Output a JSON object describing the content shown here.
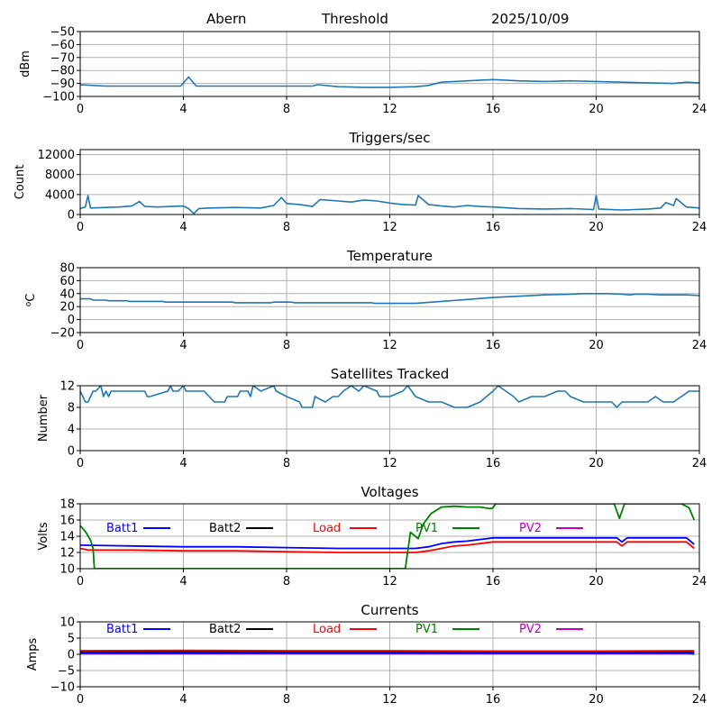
{
  "header": {
    "station": "Abern",
    "mode": "Threshold",
    "date": "2025/10/09"
  },
  "colors": {
    "series_default": "#1f77b4",
    "Batt1": "#0000ff",
    "Batt2": "#000000",
    "Load": "#ff0000",
    "PV1": "#008000",
    "PV2": "#bf00bf",
    "grid": "#b0b0b0"
  },
  "chart_data": [
    {
      "type": "line",
      "title": "",
      "ylabel": "dBm",
      "xlabel": "",
      "xlim": [
        0,
        24
      ],
      "ylim": [
        -100,
        -50
      ],
      "xticks": [
        "0",
        "4",
        "8",
        "12",
        "16",
        "20",
        "24"
      ],
      "yticks": [
        "−50",
        "−60",
        "−70",
        "−80",
        "−90",
        "−100"
      ],
      "ytick_values": [
        -50,
        -60,
        -70,
        -80,
        -90,
        -100
      ],
      "grid": true,
      "series": [
        {
          "name": "Threshold",
          "color_key": "series_default",
          "x": [
            0,
            0.5,
            1,
            2,
            3,
            3.9,
            4.2,
            4.5,
            5,
            6,
            7,
            8,
            9,
            9.2,
            10,
            11,
            12,
            13,
            13.5,
            14,
            15,
            16,
            17,
            18,
            19,
            20,
            21,
            22,
            23,
            23.5,
            24
          ],
          "y": [
            -91,
            -91.5,
            -92,
            -92,
            -92,
            -92,
            -85,
            -92,
            -92,
            -92,
            -92,
            -92,
            -92,
            -91,
            -92.5,
            -93,
            -93,
            -92.5,
            -91.5,
            -89,
            -88,
            -87,
            -88,
            -88.5,
            -88,
            -88.5,
            -89,
            -89.5,
            -90,
            -89,
            -89.5
          ]
        }
      ]
    },
    {
      "type": "line",
      "title": "Triggers/sec",
      "ylabel": "Count",
      "xlabel": "",
      "xlim": [
        0,
        24
      ],
      "ylim": [
        0,
        13000
      ],
      "xticks": [
        "0",
        "4",
        "8",
        "12",
        "16",
        "20",
        "24"
      ],
      "yticks": [
        "12000",
        "8000",
        "4000",
        "0"
      ],
      "ytick_values": [
        12000,
        8000,
        4000,
        0
      ],
      "grid": true,
      "series": [
        {
          "name": "Triggers",
          "color_key": "series_default",
          "x": [
            0,
            0.2,
            0.3,
            0.4,
            1,
            1.5,
            2,
            2.3,
            2.5,
            3,
            3.5,
            4,
            4.2,
            4.4,
            4.6,
            5,
            6,
            7,
            7.5,
            7.8,
            8,
            8.5,
            9,
            9.3,
            10,
            10.5,
            11,
            11.5,
            12,
            12.5,
            13,
            13.1,
            13.5,
            14,
            14.5,
            15,
            15.5,
            16,
            17,
            18,
            19,
            19.9,
            20,
            20.1,
            21,
            21.5,
            22,
            22.5,
            22.7,
            23,
            23.1,
            23.5,
            24
          ],
          "y": [
            1200,
            1500,
            3800,
            1300,
            1400,
            1500,
            1700,
            2600,
            1600,
            1500,
            1600,
            1700,
            1200,
            200,
            1200,
            1300,
            1400,
            1300,
            1800,
            3400,
            2200,
            2000,
            1600,
            3000,
            2700,
            2500,
            2900,
            2700,
            2300,
            2000,
            1900,
            3800,
            2000,
            1700,
            1500,
            1800,
            1600,
            1500,
            1200,
            1100,
            1200,
            1000,
            3800,
            1100,
            900,
            1000,
            1100,
            1300,
            2400,
            1800,
            3200,
            1500,
            1300
          ]
        }
      ]
    },
    {
      "type": "line",
      "title": "Temperature",
      "ylabel": "°C",
      "ylabel_prefix": "o",
      "ylabel_suffix": "C",
      "xlabel": "",
      "xlim": [
        0,
        24
      ],
      "ylim": [
        -20,
        80
      ],
      "xticks": [
        "0",
        "4",
        "8",
        "12",
        "16",
        "20",
        "24"
      ],
      "yticks": [
        "80",
        "60",
        "40",
        "20",
        "0",
        "−20"
      ],
      "ytick_values": [
        80,
        60,
        40,
        20,
        0,
        -20
      ],
      "grid": true,
      "series": [
        {
          "name": "Temperature",
          "color_key": "series_default",
          "x": [
            0,
            0.4,
            0.5,
            1.0,
            1.1,
            1.8,
            1.9,
            3.2,
            3.3,
            5.9,
            6.0,
            7.4,
            7.5,
            8.2,
            8.3,
            11.3,
            11.4,
            13.0,
            14,
            15,
            16,
            17,
            18,
            19,
            19.5,
            20,
            20.5,
            21,
            21.3,
            21.5,
            22,
            22.5,
            23,
            23.5,
            24
          ],
          "y": [
            32,
            32,
            30,
            30,
            29,
            29,
            28,
            28,
            27,
            27,
            26,
            26,
            27,
            27,
            26,
            26,
            25,
            25,
            28,
            31,
            34,
            36,
            38,
            39,
            40,
            40,
            40,
            39,
            38,
            39,
            39,
            38,
            38,
            38,
            37
          ]
        }
      ]
    },
    {
      "type": "line",
      "title": "Satellites Tracked",
      "ylabel": "Number",
      "xlabel": "",
      "xlim": [
        0,
        24
      ],
      "ylim": [
        0,
        12
      ],
      "xticks": [
        "0",
        "4",
        "8",
        "12",
        "16",
        "20",
        "24"
      ],
      "yticks": [
        "12",
        "8",
        "4",
        "0"
      ],
      "ytick_values": [
        12,
        8,
        4,
        0
      ],
      "grid": true,
      "series": [
        {
          "name": "Satellites",
          "color_key": "series_default",
          "x": [
            0,
            0.1,
            0.2,
            0.3,
            0.4,
            0.5,
            0.6,
            0.8,
            0.9,
            1.0,
            1.1,
            1.2,
            2.5,
            2.6,
            2.7,
            3.4,
            3.5,
            3.6,
            3.8,
            4.0,
            4.1,
            4.8,
            5.0,
            5.2,
            5.6,
            5.7,
            6.1,
            6.2,
            6.5,
            6.6,
            6.7,
            7.0,
            7.5,
            7.6,
            8.0,
            8.5,
            8.6,
            9.0,
            9.1,
            9.5,
            9.8,
            10.0,
            10.2,
            10.5,
            10.8,
            11.0,
            11.5,
            11.6,
            12.0,
            12.5,
            12.7,
            13.0,
            13.5,
            14.0,
            14.5,
            15.0,
            15.5,
            16.0,
            16.2,
            16.5,
            16.8,
            17.0,
            17.5,
            18.0,
            18.5,
            18.8,
            19.0,
            19.5,
            19.7,
            20.0,
            20.3,
            20.6,
            20.8,
            21.0,
            22.0,
            22.3,
            22.6,
            23.0,
            23.3,
            23.6,
            24.0
          ],
          "y": [
            11,
            10,
            9,
            9,
            10,
            11,
            11,
            12,
            10,
            11,
            10,
            11,
            11,
            10,
            10,
            11,
            12,
            11,
            11,
            12,
            11,
            11,
            10,
            9,
            9,
            10,
            10,
            11,
            11,
            10,
            12,
            11,
            12,
            11,
            10,
            9,
            8,
            8,
            10,
            9,
            10,
            10,
            11,
            12,
            11,
            12,
            11,
            10,
            10,
            11,
            12,
            10,
            9,
            9,
            8,
            8,
            9,
            11,
            12,
            11,
            10,
            9,
            10,
            10,
            11,
            11,
            10,
            9,
            9,
            9,
            9,
            9,
            8,
            9,
            9,
            10,
            9,
            9,
            10,
            11,
            11
          ]
        }
      ]
    },
    {
      "type": "line",
      "title": "Voltages",
      "ylabel": "Volts",
      "xlabel": "",
      "xlim": [
        0,
        24
      ],
      "ylim": [
        10,
        18
      ],
      "xticks": [
        "0",
        "4",
        "8",
        "12",
        "16",
        "20",
        "24"
      ],
      "yticks": [
        "18",
        "16",
        "14",
        "12",
        "10"
      ],
      "ytick_values": [
        18,
        16,
        14,
        12,
        10
      ],
      "grid": true,
      "legend": {
        "placement": "top",
        "entries": [
          "Batt1",
          "Batt2",
          "Load",
          "PV1",
          "PV2"
        ]
      },
      "series": [
        {
          "name": "Batt1",
          "color_key": "Batt1",
          "x": [
            0,
            2,
            4,
            6,
            8,
            10,
            12,
            13,
            13.5,
            14,
            14.5,
            15,
            16,
            18,
            20,
            20.8,
            21,
            21.2,
            22,
            23,
            23.5,
            23.8
          ],
          "y": [
            12.9,
            12.8,
            12.7,
            12.7,
            12.6,
            12.5,
            12.5,
            12.5,
            12.7,
            13.1,
            13.3,
            13.4,
            13.8,
            13.8,
            13.8,
            13.8,
            13.3,
            13.8,
            13.8,
            13.8,
            13.8,
            13.0
          ]
        },
        {
          "name": "Load",
          "color_key": "Load",
          "x": [
            0,
            0.3,
            2,
            4,
            6,
            8,
            10,
            12,
            13,
            13.5,
            14,
            14.5,
            15,
            16,
            18,
            20,
            20.8,
            21,
            21.2,
            22,
            23,
            23.5,
            23.8
          ],
          "y": [
            12.5,
            12.3,
            12.3,
            12.2,
            12.2,
            12.1,
            12.0,
            12.0,
            12.0,
            12.2,
            12.5,
            12.8,
            12.9,
            13.3,
            13.3,
            13.3,
            13.3,
            12.8,
            13.3,
            13.3,
            13.3,
            13.3,
            12.5
          ]
        },
        {
          "name": "PV1",
          "color_key": "PV1",
          "x": [
            0,
            0.2,
            0.4,
            0.5,
            0.55,
            12.6,
            12.8,
            13.1,
            13.3,
            13.6,
            14,
            14.5,
            15,
            15.5,
            15.9,
            16.0,
            16.1,
            18.7,
            20.7,
            20.9,
            21.1,
            23.3,
            23.6,
            23.8
          ],
          "y": [
            15.3,
            14.6,
            13.5,
            12.5,
            10.0,
            10.0,
            14.5,
            13.7,
            15.5,
            16.8,
            17.6,
            17.7,
            17.6,
            17.6,
            17.4,
            17.5,
            18.0,
            18.0,
            18.0,
            16.2,
            18.0,
            18.0,
            17.5,
            16.0
          ]
        }
      ]
    },
    {
      "type": "line",
      "title": "Currents",
      "ylabel": "Amps",
      "xlabel": "",
      "xlim": [
        0,
        24
      ],
      "ylim": [
        -10,
        10
      ],
      "xticks": [
        "0",
        "4",
        "8",
        "12",
        "16",
        "20",
        "24"
      ],
      "yticks": [
        "10",
        "5",
        "0",
        "−5",
        "−10"
      ],
      "ytick_values": [
        10,
        5,
        0,
        -5,
        -10
      ],
      "grid": true,
      "legend": {
        "placement": "top",
        "entries": [
          "Batt1",
          "Batt2",
          "Load",
          "PV1",
          "PV2"
        ]
      },
      "series": [
        {
          "name": "PV2",
          "color_key": "PV2",
          "x": [
            0,
            23.8
          ],
          "y": [
            0.2,
            0.2
          ]
        },
        {
          "name": "PV1",
          "color_key": "PV1",
          "x": [
            0,
            23.5,
            23.8
          ],
          "y": [
            0.3,
            0.3,
            0.0
          ]
        },
        {
          "name": "Batt1",
          "color_key": "Batt1",
          "x": [
            0,
            23.8
          ],
          "y": [
            0.4,
            0.4
          ]
        },
        {
          "name": "Batt2",
          "color_key": "Batt2",
          "x": [
            0,
            23.8
          ],
          "y": [
            0.8,
            0.8
          ]
        },
        {
          "name": "Load",
          "color_key": "Load",
          "x": [
            0,
            4,
            8,
            12,
            16,
            20,
            23.8
          ],
          "y": [
            1.1,
            1.2,
            1.1,
            1.1,
            1.0,
            1.0,
            1.1
          ]
        }
      ]
    }
  ]
}
